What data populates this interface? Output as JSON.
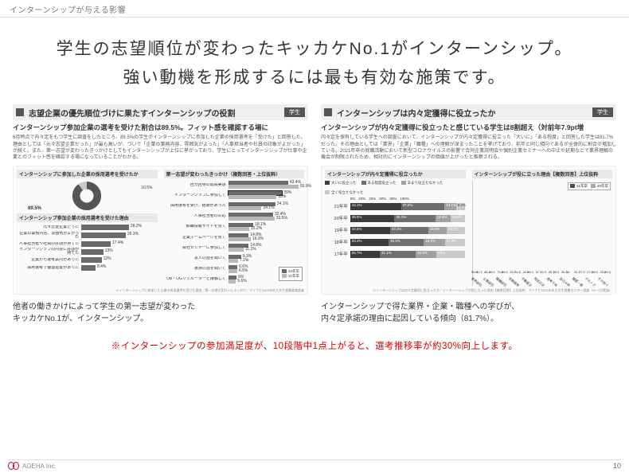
{
  "topbar": "インターンシップが与える影響",
  "headline_l1": "学生の志望順位が変わったキッカケNo.1がインターンシップ。",
  "headline_l2": "強い動機を形成するには最も有効な施策です。",
  "left": {
    "header_title": "志望企業の優先順位づけに果たすインターンシップの役割",
    "header_tag": "学生",
    "lead": "インターンシップ参加企業の選考を受けた割合は89.5%。フィット感を確認する場に",
    "body": "6月時点で内々定をもつ学生に調査をしたところ、89.5%の学生がインターンシップに参加した企業の採用選考を「受けた」と回答した。理由としては「元々志望企業だった」が最も高いが、ついで「企業の業務内容、雰囲気がよった」「人事担当者や社員の印象がよかった」が続く。また、第一志望が変わったきっかけとしてもインターンシップが上位に挙がっており、学生にとってインターンシップが仕事や企業とのフィット感を確認する場になっていることがわかる。",
    "chart1": {
      "title": "インターンシップに参加した企業の採用選考を受けたか",
      "donut_center": "89.5%",
      "subtitle": "インターンシップ参加企業の採用選考を受けた理由",
      "rows": [
        {
          "label": "元々志望企業だった",
          "val": 28.2
        },
        {
          "label": "企業の業務内容、雰囲気がよかった",
          "val": 26.3
        },
        {
          "label": "人事担当者や社員の好感が持てた",
          "val": 17.4
        },
        {
          "label": "インターンシップの内容に好感が持てた",
          "val": 13.0
        },
        {
          "label": "企業から選考案内があった",
          "val": 12.0
        },
        {
          "label": "採用選考で優遇措置があった",
          "val": 8.4
        }
      ],
      "max": 45,
      "bar_color": "#6a6a6a"
    },
    "chart2": {
      "title": "第一志望が変わったきっかけ（複数回答・上位抜粋）",
      "rows": [
        {
          "label": "自分自身の成長実感",
          "val": 43.4
        },
        {
          "label": "インターンシップに参加して",
          "val": 39.0,
          "highlight": true
        },
        {
          "label": "採用選考を受け、経験があった",
          "val": 34.1
        },
        {
          "label": "人事担当者の対応",
          "val": 32.4
        },
        {
          "label": "就職情報サイトを見て",
          "val": 18.1
        },
        {
          "label": "企業ホームページを見て",
          "val": 14.8
        },
        {
          "label": "会社セミナーに参加して",
          "val": 14.8
        },
        {
          "label": "友人の話を聞いて",
          "val": 9.3
        },
        {
          "label": "家族の話を聞いて",
          "val": 6.6
        },
        {
          "label": "OB・OGリクルーターと接触して",
          "val": 6.0
        }
      ],
      "alt_vals": [
        50.9,
        35.0,
        24.1,
        33.5,
        15.2,
        16.3,
        11.1,
        7.1,
        6.5,
        5.6
      ],
      "max": 55,
      "bar_color": "#6a6a6a",
      "legend": [
        "22年卒",
        "21年卒"
      ]
    },
    "caption_l1": "他者の働きかけによって学生の第一志望が変わった",
    "caption_l2": "キッカケNo.1が、インターンシップ。",
    "src": "※インターンシップに参加した企業の採用選考を受けた理由／第一志望が変わったきっかけ：マイナビ2022年卒大学生就職意識調査"
  },
  "right": {
    "header_title": "インターンシップは内々定獲得に役立ったか",
    "header_tag": "学生",
    "lead": "インターンシップが内々定獲得に役立ったと感じている学生は8割超え（対前年7.9pt増",
    "body": "内々定を保有している学生への調査において、インターンシップが内々定獲得に役立った「大いに」「ある程度」と回答した学生は81.7%だった。その理由としては「業界」「企業」「職種」への理解が深まったことを挙げており、前年と同じ傾向であるが全体的に割合が増加している。2021年卒の就職活動において新型コロナウイルスの影響で合同企業説明会や個別企業セミナーへの中止や延期などで業界理解の機会が制限されたため、相対的にインターンシップの価値が上がったと推察される。",
    "stack": {
      "title": "インターンシップが内々定獲得に役立ったか",
      "years": [
        "21年卒",
        "20年卒",
        "19年卒",
        "18年卒",
        "17年卒"
      ],
      "segA": [
        44.1,
        38.5,
        34.5,
        33.4,
        25.7
      ],
      "segB": [
        37.6,
        35.3,
        33.3,
        30.5,
        31.1
      ],
      "segC": [
        10.1,
        13.3,
        15.8,
        18.2,
        18.2
      ],
      "segD": [
        8.2,
        12.9,
        16.4,
        17.9,
        25.0
      ],
      "colors": [
        "#3b3b3b",
        "#6e6e6e",
        "#a0a0a0",
        "#c8c8c8"
      ],
      "legend": [
        "大いに役立った",
        "ある程度役立った",
        "あまり役立たなかった",
        "全く役立たなかった"
      ],
      "head_nums": [
        "0%",
        "20%",
        "40%",
        "60%",
        "80%",
        "100%"
      ]
    },
    "vbar": {
      "title": "インターンシップが役に立った理由【複数回答】上位抜粋",
      "cats": [
        "業界研究に役立った",
        "企業研究に役立った",
        "職種研究に役立った",
        "早期選考に役立った",
        "不動産企業を見つけられた",
        "特定の企業のことが深く知られた",
        "選考で本音が本音がわかった",
        "自己分析の参考になった",
        "履歴・面接対策に役立った",
        "グループディスカッションに役立った",
        "その他インターン参加経験した"
      ],
      "a": [
        96.8,
        88.3,
        74.9,
        53.7,
        44.5,
        37.1,
        35.1,
        36.5,
        30.7,
        27.6,
        28.8
      ],
      "b": [
        81.9,
        69.4,
        66.5,
        52.5,
        40.4,
        21.5,
        30.5,
        35.0,
        27.2,
        26.5,
        20.8
      ],
      "colors": [
        "#4a4a4a",
        "#a8a8a8"
      ],
      "max": 100,
      "legend": [
        "21年卒",
        "20年卒"
      ]
    },
    "caption_l1": "インターンシップで得た業界・企業・職種への学びが、",
    "caption_l2": "内々定承諾の理由に起因している傾向（81.7%）。",
    "src": "※インターンシップは内々定獲得に役立ったか／インターンシップが役に立った理由【複数回答】上位抜粋：マイナビ2021年卒大学生就職モニター調査（6～7月実施）"
  },
  "footnote": "※インターンシップの参加満足度が、10段階中1点上がると、選考推移率が約30%向上します。",
  "footer_company": "AGEHA Inc.",
  "page_number": "10"
}
